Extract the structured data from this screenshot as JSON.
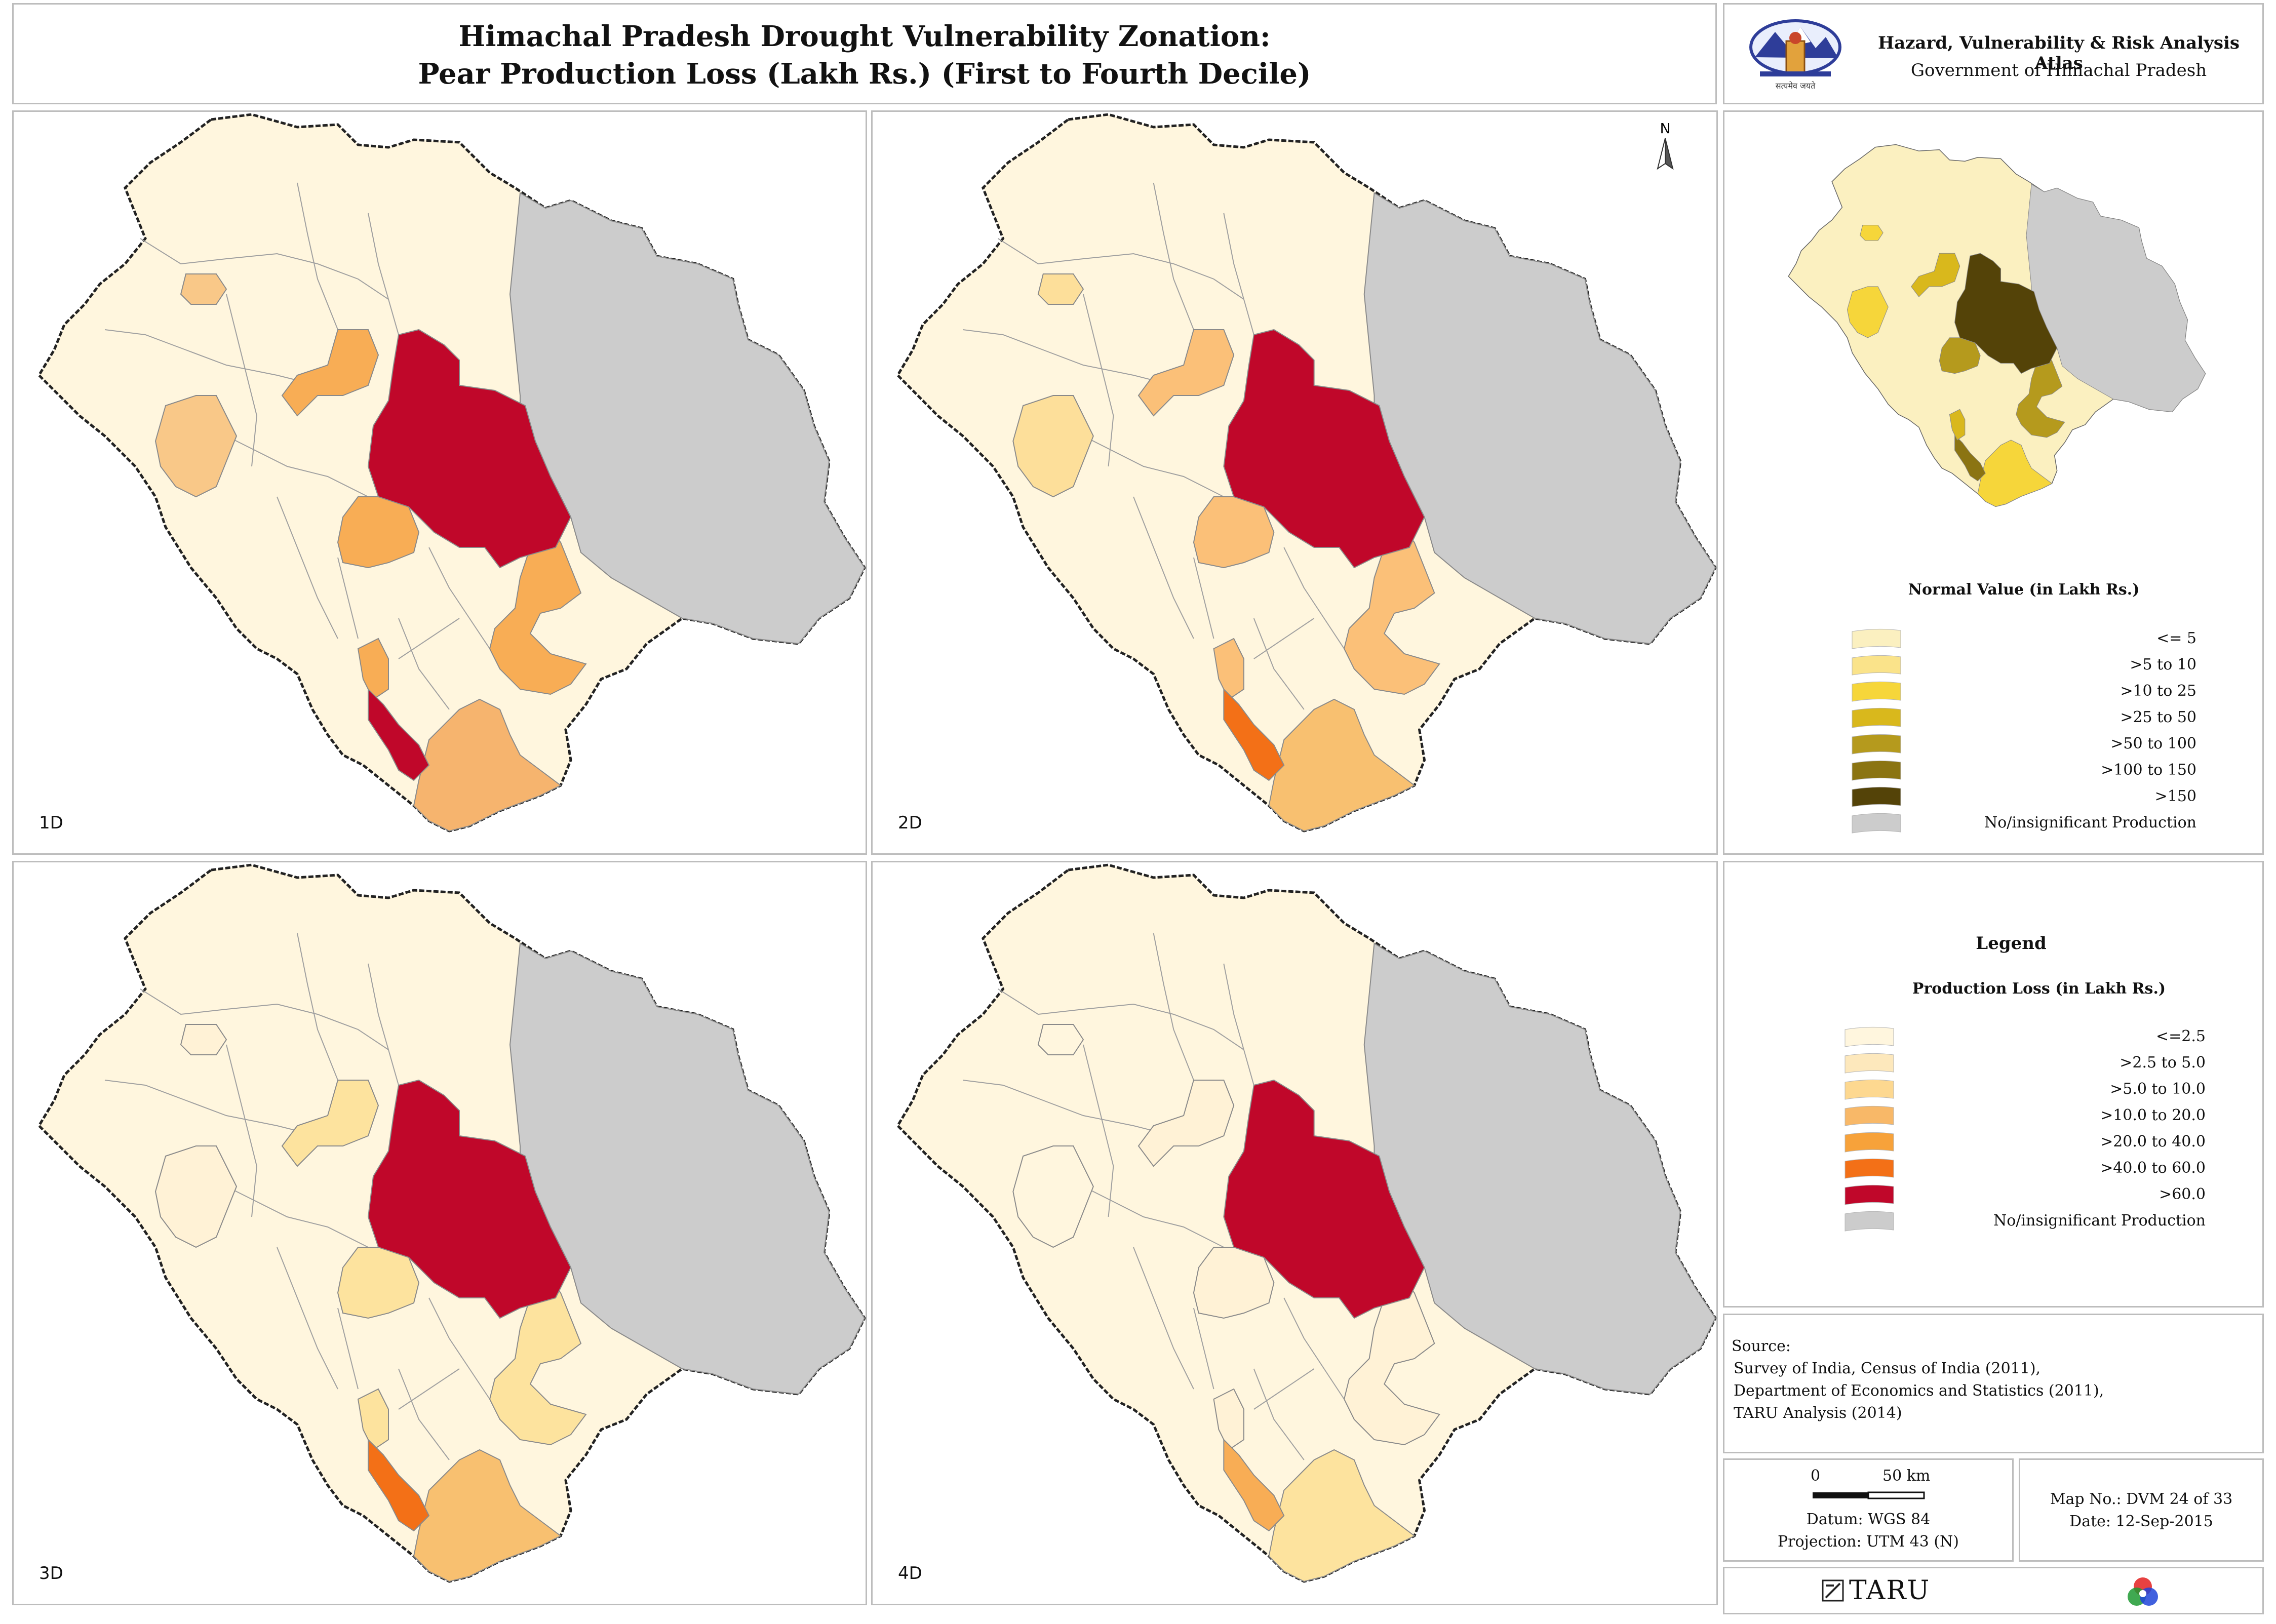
{
  "title": {
    "line1": "Himachal Pradesh Drought Vulnerability Zonation:",
    "line2": "Pear Production Loss (Lakh Rs.) (First to Fourth Decile)"
  },
  "atlas": {
    "title": "Hazard, Vulnerability & Risk Analysis Atlas",
    "subtitle": "Government of Himachal Pradesh",
    "emblem_text": "सत्यमेव जयते"
  },
  "north_arrow": "N",
  "panels": [
    {
      "label": "1D",
      "core": "#c0072a",
      "ring": "#f8ad55",
      "south": "#f6b46e",
      "west": "#f9c888",
      "strip": "#c0072a",
      "east_fill": "#fff6de"
    },
    {
      "label": "2D",
      "core": "#c0072a",
      "ring": "#fbc078",
      "south": "#f8c070",
      "west": "#fddf9a",
      "strip": "#f37017",
      "east_fill": "#fff6de"
    },
    {
      "label": "3D",
      "core": "#c0072a",
      "ring": "#fde39e",
      "south": "#f8c070",
      "west": "#fff2d6",
      "strip": "#f37017",
      "east_fill": "#fff6de"
    },
    {
      "label": "4D",
      "core": "#c0072a",
      "ring": "#fff2d6",
      "south": "#fde39e",
      "west": "#fff6de",
      "strip": "#f8ad55",
      "east_fill": "#fff6de"
    }
  ],
  "normal_legend": {
    "title": "Normal Value (in Lakh Rs.)",
    "items": [
      {
        "label": "<= 5",
        "color": "#fbf0c0"
      },
      {
        "label": ">5 to 10",
        "color": "#fae38a"
      },
      {
        "label": ">10 to 25",
        "color": "#f6d63a"
      },
      {
        "label": ">25 to 50",
        "color": "#d9b81c"
      },
      {
        "label": ">50 to 100",
        "color": "#b59a1d"
      },
      {
        "label": ">100 to 150",
        "color": "#8b7412"
      },
      {
        "label": ">150",
        "color": "#544308"
      },
      {
        "label": "No/insignificant Production",
        "color": "#cccccc"
      }
    ]
  },
  "loss_legend": {
    "heading": "Legend",
    "title": "Production Loss (in Lakh Rs.)",
    "items": [
      {
        "label": "<=2.5",
        "color": "#fff6de"
      },
      {
        "label": ">2.5 to 5.0",
        "color": "#fde8bc"
      },
      {
        "label": ">5.0 to 10.0",
        "color": "#fdd890"
      },
      {
        "label": ">10.0 to 20.0",
        "color": "#f8b868"
      },
      {
        "label": ">20.0 to 40.0",
        "color": "#f7a23a"
      },
      {
        "label": ">40.0 to 60.0",
        "color": "#f37017"
      },
      {
        "label": ">60.0",
        "color": "#c0072a"
      },
      {
        "label": "No/insignificant Production",
        "color": "#cccccc"
      }
    ]
  },
  "source": {
    "heading": "Source:",
    "lines": [
      "Survey of India, Census of India (2011),",
      "Department of Economics and Statistics (2011),",
      "TARU Analysis (2014)"
    ]
  },
  "scale": {
    "zero": "0",
    "distance": "50 km",
    "datum": "Datum: WGS 84",
    "projection": "Projection: UTM 43 (N)"
  },
  "map_info": {
    "map_no": "Map No.: DVM 24 of 33",
    "date": "Date: 12-Sep-2015"
  },
  "footer": {
    "brand": "TARU"
  },
  "colors": {
    "border": "#bdbdbd",
    "grey_area": "#cccccc",
    "base_fill": "#fff6de",
    "district_line": "#555555"
  }
}
